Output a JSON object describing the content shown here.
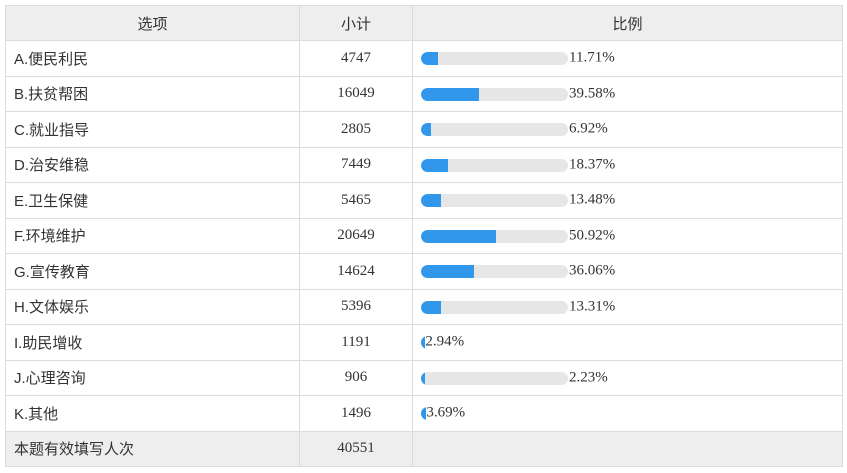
{
  "table": {
    "headers": {
      "option": "选项",
      "count": "小计",
      "ratio": "比例"
    },
    "accent": "#3197ea",
    "rows": [
      {
        "label": "A.便民利民",
        "count": "4747",
        "percent": 11.71,
        "percent_text": "11.71%"
      },
      {
        "label": "B.扶贫帮困",
        "count": "16049",
        "percent": 39.58,
        "percent_text": "39.58%"
      },
      {
        "label": "C.就业指导",
        "count": "2805",
        "percent": 6.92,
        "percent_text": "6.92%"
      },
      {
        "label": "D.治安维稳",
        "count": "7449",
        "percent": 18.37,
        "percent_text": "18.37%"
      },
      {
        "label": "E.卫生保健",
        "count": "5465",
        "percent": 13.48,
        "percent_text": "13.48%"
      },
      {
        "label": "F.环境维护",
        "count": "20649",
        "percent": 50.92,
        "percent_text": "50.92%"
      },
      {
        "label": "G.宣传教育",
        "count": "14624",
        "percent": 36.06,
        "percent_text": "36.06%"
      },
      {
        "label": "H.文体娱乐",
        "count": "5396",
        "percent": 13.31,
        "percent_text": "13.31%"
      },
      {
        "label": "I.助民增收",
        "count": "1191",
        "percent": 2.94,
        "percent_text": "2.94%",
        "track": false
      },
      {
        "label": "J.心理咨询",
        "count": "906",
        "percent": 2.23,
        "percent_text": "2.23%"
      },
      {
        "label": "K.其他",
        "count": "1496",
        "percent": 3.69,
        "percent_text": "3.69%",
        "track": false
      }
    ],
    "footer": {
      "label": "本题有效填写人次",
      "count": "40551"
    }
  }
}
